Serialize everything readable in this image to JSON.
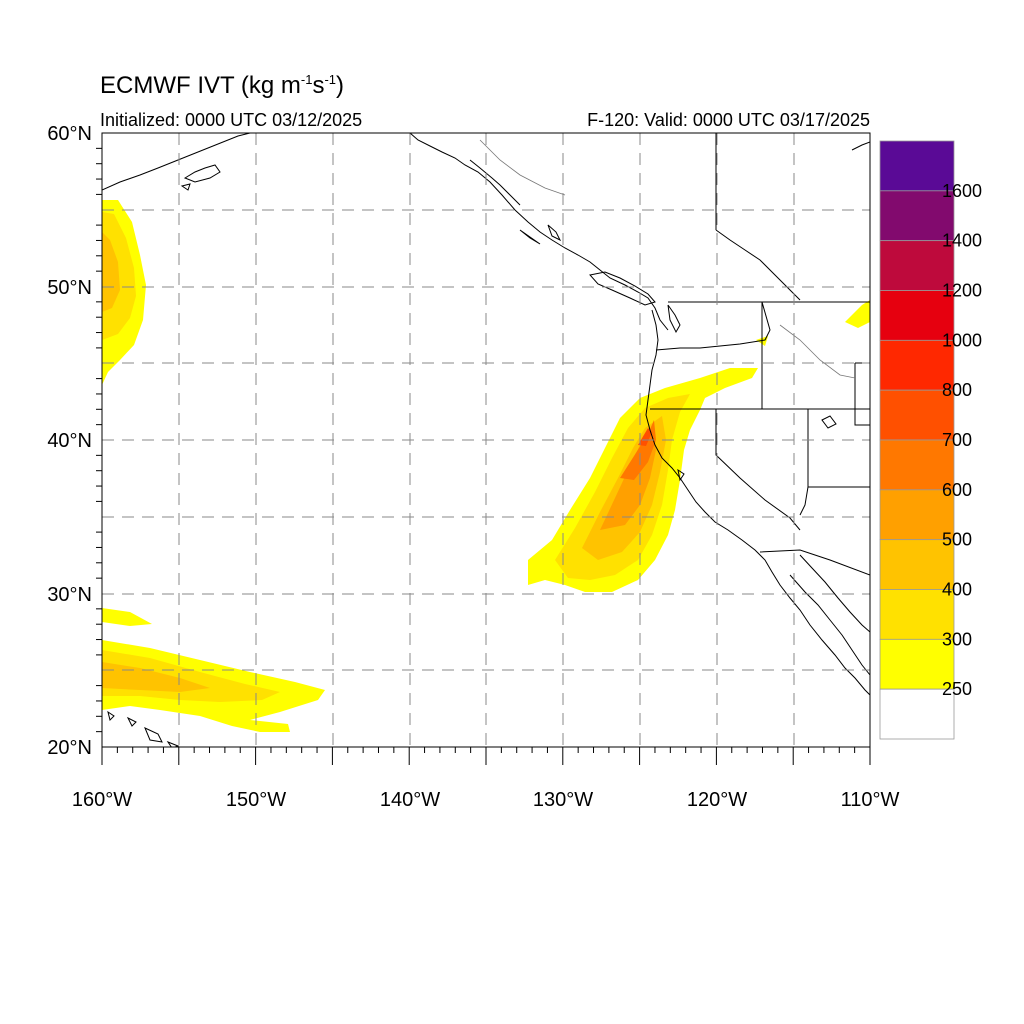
{
  "header": {
    "title_main": "ECMWF IVT (kg m",
    "title_exp1": "-1",
    "title_mid": "s",
    "title_exp2": "-1",
    "title_end": ")",
    "initialized": "Initialized: 0000 UTC 03/12/2025",
    "valid": "F-120: Valid: 0000 UTC 03/17/2025"
  },
  "map": {
    "lat_labels": [
      "60°N",
      "50°N",
      "40°N",
      "30°N",
      "20°N"
    ],
    "lon_labels": [
      "160°W",
      "150°W",
      "140°W",
      "130°W",
      "120°W",
      "110°W"
    ],
    "lat_range": [
      20,
      60
    ],
    "lon_range": [
      -160,
      -110
    ],
    "grid": "dashed"
  },
  "colorbar": {
    "labels": [
      "1600",
      "1400",
      "1200",
      "1000",
      "800",
      "700",
      "600",
      "500",
      "400",
      "300",
      "250"
    ],
    "colors": [
      "#5a0a96",
      "#820a6e",
      "#be0a3c",
      "#e6000f",
      "#ff2800",
      "#ff5000",
      "#ff7800",
      "#ffa000",
      "#ffc300",
      "#ffe100",
      "#ffff00",
      "#ffffff"
    ]
  },
  "ivt_regions": [
    {
      "name": "ar-west-pacific-north",
      "level": "250-400"
    },
    {
      "name": "ar-california-plume",
      "level": "250-700"
    },
    {
      "name": "ar-subtropical-band",
      "level": "250-400"
    },
    {
      "name": "ar-inland-northwest",
      "level": "250-300"
    }
  ]
}
